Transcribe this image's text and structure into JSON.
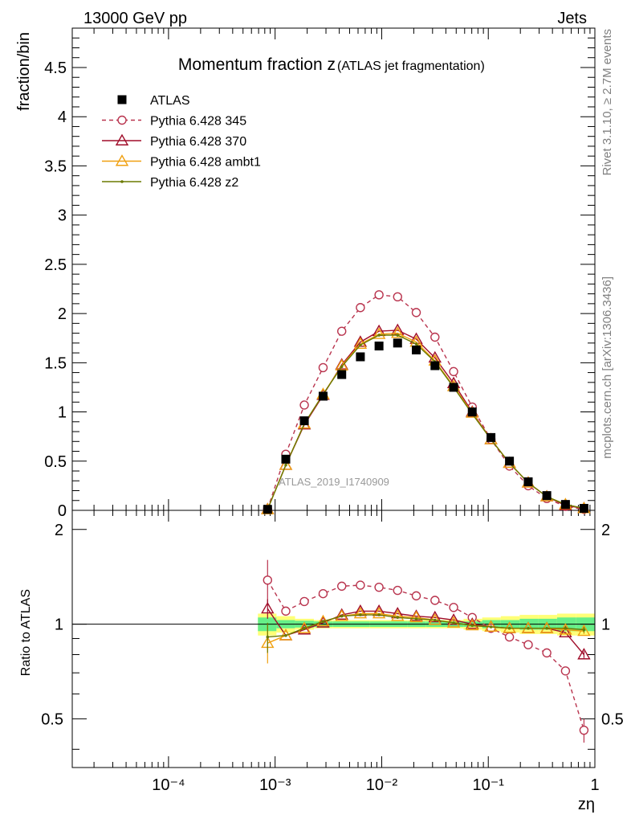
{
  "header": {
    "left": "13000 GeV pp",
    "right": "Jets"
  },
  "side_text": {
    "top": "Rivet 3.1.10, ≥ 2.7M events",
    "bottom": "mcplots.cern.ch [arXiv:1306.3436]"
  },
  "watermark": "ATLAS_2019_I1740909",
  "chart_data": {
    "type": "line",
    "title_main": "Momentum fraction z",
    "title_sub": "(ATLAS jet fragmentation)",
    "xlabel": "zη",
    "ylabel": "fraction/bin",
    "ratio_ylabel": "Ratio to ATLAS",
    "x_scale": "log",
    "xlim": [
      1.25e-05,
      1
    ],
    "ylim": [
      0,
      4.9
    ],
    "ratio_ylim": [
      0.35,
      2.3
    ],
    "x_tick_labels": [
      "10⁻⁴",
      "10⁻³",
      "10⁻²",
      "10⁻¹",
      "1"
    ],
    "y_tick_labels": [
      "0",
      "0.5",
      "1",
      "1.5",
      "2",
      "2.5",
      "3",
      "3.5",
      "4",
      "4.5"
    ],
    "ratio_tick_labels": [
      "0.5",
      "1",
      "2"
    ],
    "legend_position": "top-left",
    "x": [
      0.00085,
      0.00126,
      0.00188,
      0.00282,
      0.00422,
      0.00631,
      0.00944,
      0.0141,
      0.0211,
      0.0316,
      0.0473,
      0.0707,
      0.106,
      0.158,
      0.237,
      0.354,
      0.53,
      0.79
    ],
    "series": [
      {
        "name": "ATLAS",
        "color": "#000000",
        "marker": "square",
        "values": [
          0.01,
          0.52,
          0.91,
          1.16,
          1.38,
          1.56,
          1.67,
          1.7,
          1.63,
          1.47,
          1.25,
          1.0,
          0.74,
          0.5,
          0.29,
          0.15,
          0.06,
          0.02
        ]
      },
      {
        "name": "Pythia 6.428 345",
        "color": "#b9344e",
        "marker": "circle",
        "dash": true,
        "values": [
          0.013,
          0.57,
          1.07,
          1.45,
          1.82,
          2.06,
          2.19,
          2.17,
          2.01,
          1.76,
          1.41,
          1.05,
          0.72,
          0.45,
          0.25,
          0.12,
          0.04,
          0.01
        ]
      },
      {
        "name": "Pythia 6.428 370",
        "color": "#a00d2a",
        "marker": "triangle",
        "values": [
          0.011,
          0.46,
          0.87,
          1.17,
          1.48,
          1.71,
          1.82,
          1.83,
          1.74,
          1.55,
          1.29,
          1.0,
          0.72,
          0.48,
          0.28,
          0.14,
          0.05,
          0.02
        ]
      },
      {
        "name": "Pythia 6.428 ambt1",
        "color": "#f0a010",
        "marker": "triangle",
        "values": [
          0.009,
          0.46,
          0.88,
          1.18,
          1.47,
          1.69,
          1.79,
          1.8,
          1.71,
          1.52,
          1.26,
          0.99,
          0.72,
          0.48,
          0.28,
          0.14,
          0.06,
          0.02
        ]
      },
      {
        "name": "Pythia 6.428 z2",
        "color": "#6b7a00",
        "marker": "dot",
        "values": [
          0.009,
          0.46,
          0.88,
          1.18,
          1.46,
          1.68,
          1.78,
          1.78,
          1.69,
          1.51,
          1.25,
          0.98,
          0.72,
          0.48,
          0.28,
          0.14,
          0.06,
          0.02
        ]
      }
    ],
    "ratios": [
      {
        "name": "Pythia 6.428 345",
        "values": [
          1.38,
          1.1,
          1.18,
          1.25,
          1.32,
          1.33,
          1.31,
          1.28,
          1.23,
          1.19,
          1.13,
          1.05,
          0.97,
          0.91,
          0.86,
          0.81,
          0.71,
          0.46
        ],
        "errors": [
          0.22,
          0.02,
          0.01,
          0.01,
          0.01,
          0.01,
          0.01,
          0.01,
          0.01,
          0.01,
          0.01,
          0.01,
          0.01,
          0.01,
          0.01,
          0.01,
          0.02,
          0.04
        ]
      },
      {
        "name": "Pythia 6.428 370",
        "values": [
          1.12,
          0.92,
          0.96,
          1.01,
          1.07,
          1.1,
          1.1,
          1.08,
          1.06,
          1.05,
          1.03,
          1.0,
          0.98,
          0.97,
          0.97,
          0.97,
          0.94,
          0.8
        ],
        "errors": [
          0.08,
          0.01,
          0.01,
          0.01,
          0.01,
          0.01,
          0.01,
          0.01,
          0.01,
          0.01,
          0.01,
          0.01,
          0.01,
          0.01,
          0.01,
          0.01,
          0.01,
          0.02
        ]
      },
      {
        "name": "Pythia 6.428 ambt1",
        "values": [
          0.87,
          0.92,
          0.97,
          1.02,
          1.06,
          1.08,
          1.08,
          1.06,
          1.05,
          1.03,
          1.01,
          0.99,
          0.98,
          0.97,
          0.97,
          0.97,
          0.96,
          0.95
        ],
        "errors": [
          0.12,
          0.01,
          0.01,
          0.01,
          0.01,
          0.01,
          0.01,
          0.01,
          0.01,
          0.01,
          0.01,
          0.01,
          0.01,
          0.01,
          0.01,
          0.01,
          0.01,
          0.02
        ]
      },
      {
        "name": "Pythia 6.428 z2",
        "values": [
          0.91,
          0.92,
          0.97,
          1.02,
          1.06,
          1.07,
          1.07,
          1.05,
          1.04,
          1.03,
          1.01,
          0.99,
          0.98,
          0.97,
          0.97,
          0.97,
          0.97,
          0.96
        ],
        "errors": [
          0.1,
          0.01,
          0.01,
          0.01,
          0.01,
          0.01,
          0.01,
          0.01,
          0.01,
          0.01,
          0.01,
          0.01,
          0.01,
          0.01,
          0.01,
          0.01,
          0.01,
          0.02
        ]
      }
    ],
    "uncertainty_band": {
      "x_edges": [
        0.00069,
        0.00103,
        0.00154,
        0.00231,
        0.00346,
        0.00518,
        0.00776,
        0.0116,
        0.0174,
        0.0261,
        0.0391,
        0.0586,
        0.0877,
        0.131,
        0.197,
        0.295,
        0.442,
        0.662,
        1.0
      ],
      "stat": [
        0.05,
        0.03,
        0.025,
        0.02,
        0.02,
        0.02,
        0.02,
        0.02,
        0.02,
        0.02,
        0.02,
        0.02,
        0.03,
        0.03,
        0.04,
        0.04,
        0.05,
        0.05
      ],
      "total": [
        0.08,
        0.06,
        0.04,
        0.03,
        0.03,
        0.03,
        0.03,
        0.03,
        0.03,
        0.03,
        0.03,
        0.04,
        0.05,
        0.06,
        0.07,
        0.07,
        0.08,
        0.08
      ]
    }
  }
}
